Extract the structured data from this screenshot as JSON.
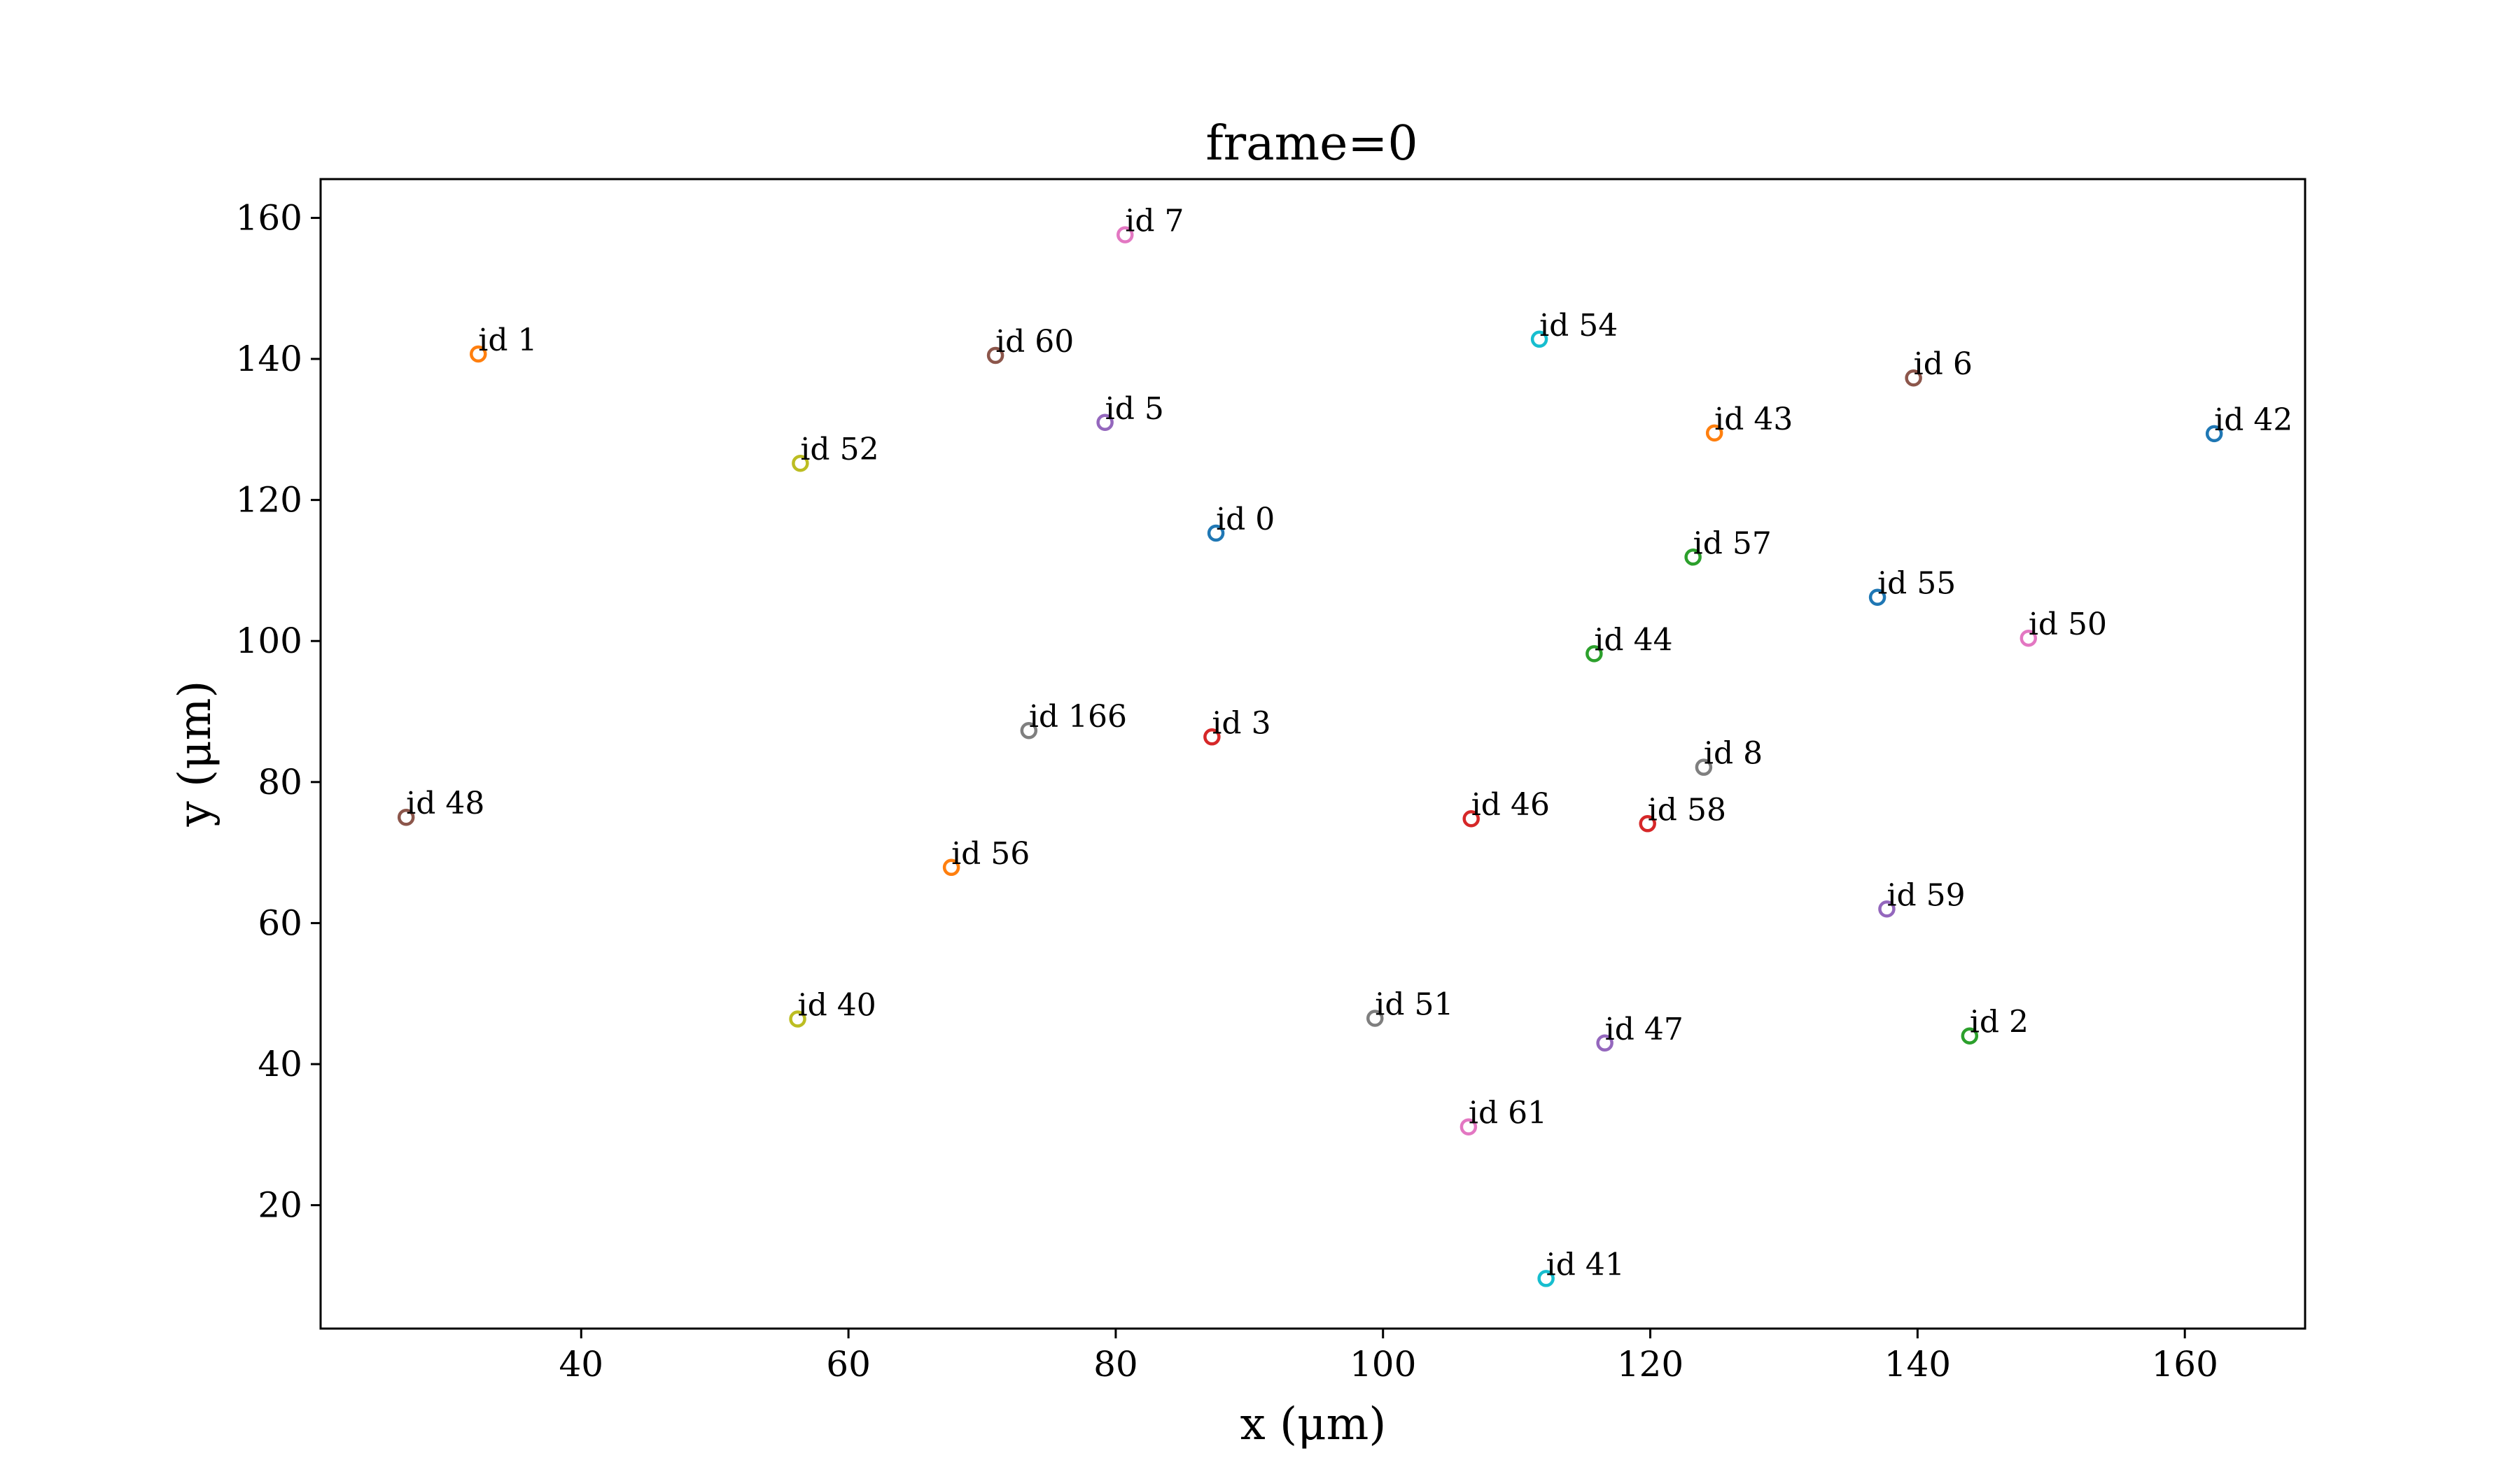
{
  "chart_data": {
    "type": "scatter",
    "title": "frame=0",
    "xlabel": "x (μm)",
    "ylabel": "y (μm)",
    "xlim": [
      20.5,
      169
    ],
    "ylim": [
      2.5,
      165.5
    ],
    "xticks": [
      40,
      60,
      80,
      100,
      120,
      140,
      160
    ],
    "yticks": [
      20,
      40,
      60,
      80,
      100,
      120,
      140,
      160
    ],
    "grid": false,
    "legend": "none",
    "marker": "open-circle",
    "points": [
      {
        "label": "id 7",
        "x": 80.7,
        "y": 157.6,
        "color": "#e377c2"
      },
      {
        "label": "id 1",
        "x": 32.3,
        "y": 140.7,
        "color": "#ff7f0e"
      },
      {
        "label": "id 60",
        "x": 71.0,
        "y": 140.5,
        "color": "#8c564b"
      },
      {
        "label": "id 54",
        "x": 111.7,
        "y": 142.8,
        "color": "#17becf"
      },
      {
        "label": "id 6",
        "x": 139.7,
        "y": 137.3,
        "color": "#8c564b"
      },
      {
        "label": "id 42",
        "x": 162.2,
        "y": 129.4,
        "color": "#1f77b4"
      },
      {
        "label": "id 43",
        "x": 124.8,
        "y": 129.5,
        "color": "#ff7f0e"
      },
      {
        "label": "id 5",
        "x": 79.2,
        "y": 131.0,
        "color": "#9467bd"
      },
      {
        "label": "id 52",
        "x": 56.4,
        "y": 125.2,
        "color": "#bcbd22"
      },
      {
        "label": "id 0",
        "x": 87.5,
        "y": 115.3,
        "color": "#1f77b4"
      },
      {
        "label": "id 57",
        "x": 123.2,
        "y": 111.9,
        "color": "#2ca02c"
      },
      {
        "label": "id 55",
        "x": 137.0,
        "y": 106.2,
        "color": "#1f77b4"
      },
      {
        "label": "id 50",
        "x": 148.3,
        "y": 100.4,
        "color": "#e377c2"
      },
      {
        "label": "id 44",
        "x": 115.8,
        "y": 98.2,
        "color": "#2ca02c"
      },
      {
        "label": "id 166",
        "x": 73.5,
        "y": 87.3,
        "color": "#7f7f7f"
      },
      {
        "label": "id 3",
        "x": 87.2,
        "y": 86.4,
        "color": "#d62728"
      },
      {
        "label": "id 8",
        "x": 124.0,
        "y": 82.1,
        "color": "#7f7f7f"
      },
      {
        "label": "id 48",
        "x": 26.9,
        "y": 75.0,
        "color": "#8c564b"
      },
      {
        "label": "id 46",
        "x": 106.6,
        "y": 74.8,
        "color": "#d62728"
      },
      {
        "label": "id 58",
        "x": 119.8,
        "y": 74.1,
        "color": "#d62728"
      },
      {
        "label": "id 56",
        "x": 67.7,
        "y": 67.9,
        "color": "#ff7f0e"
      },
      {
        "label": "id 59",
        "x": 137.7,
        "y": 62.0,
        "color": "#9467bd"
      },
      {
        "label": "id 40",
        "x": 56.2,
        "y": 46.4,
        "color": "#bcbd22"
      },
      {
        "label": "id 51",
        "x": 99.4,
        "y": 46.5,
        "color": "#7f7f7f"
      },
      {
        "label": "id 47",
        "x": 116.6,
        "y": 43.0,
        "color": "#9467bd"
      },
      {
        "label": "id 2",
        "x": 143.9,
        "y": 44.0,
        "color": "#2ca02c"
      },
      {
        "label": "id 61",
        "x": 106.4,
        "y": 31.1,
        "color": "#e377c2"
      },
      {
        "label": "id 41",
        "x": 112.2,
        "y": 9.6,
        "color": "#17becf"
      }
    ]
  }
}
